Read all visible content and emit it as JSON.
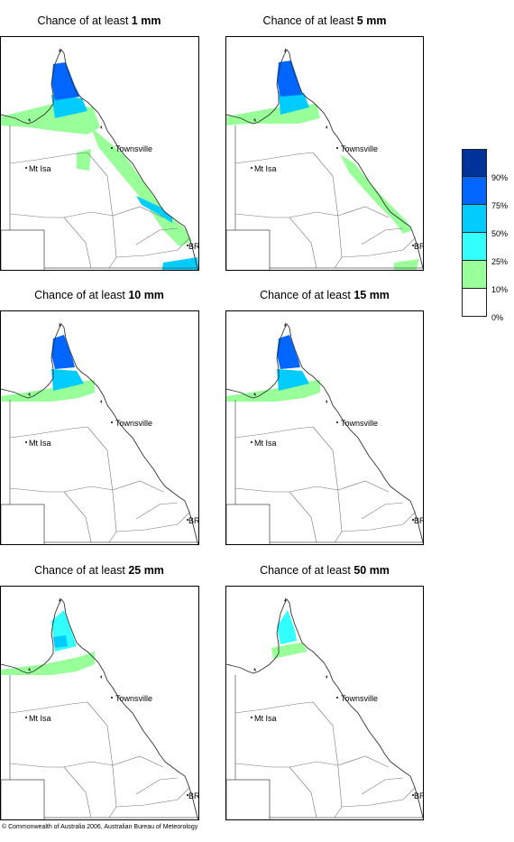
{
  "panels": [
    {
      "title_prefix": "Chance of at least ",
      "title_value": "1 mm",
      "map_data": {
        "threshold_mm": 1,
        "rain_extent": "extensive"
      }
    },
    {
      "title_prefix": "Chance of at least ",
      "title_value": "5 mm",
      "map_data": {
        "threshold_mm": 5,
        "rain_extent": "moderate"
      }
    },
    {
      "title_prefix": "Chance of at least ",
      "title_value": "10 mm",
      "map_data": {
        "threshold_mm": 10,
        "rain_extent": "limited"
      }
    },
    {
      "title_prefix": "Chance of at least ",
      "title_value": "15 mm",
      "map_data": {
        "threshold_mm": 15,
        "rain_extent": "limited"
      }
    },
    {
      "title_prefix": "Chance of at least ",
      "title_value": "25 mm",
      "map_data": {
        "threshold_mm": 25,
        "rain_extent": "small"
      }
    },
    {
      "title_prefix": "Chance of at least ",
      "title_value": "50 mm",
      "map_data": {
        "threshold_mm": 50,
        "rain_extent": "minimal"
      }
    }
  ],
  "places": {
    "townsville": "Townsville",
    "mt_isa": "Mt Isa",
    "bris": "BRIS"
  },
  "legend": {
    "colors": [
      "#003399",
      "#0066ff",
      "#00ccff",
      "#33ffff",
      "#99ff99",
      "#ffffff"
    ],
    "labels": [
      "90%",
      "75%",
      "50%",
      "25%",
      "10%",
      "0%"
    ]
  },
  "copyright": "© Commonwealth of Australia 2006, Australian Bureau of Meteorology"
}
